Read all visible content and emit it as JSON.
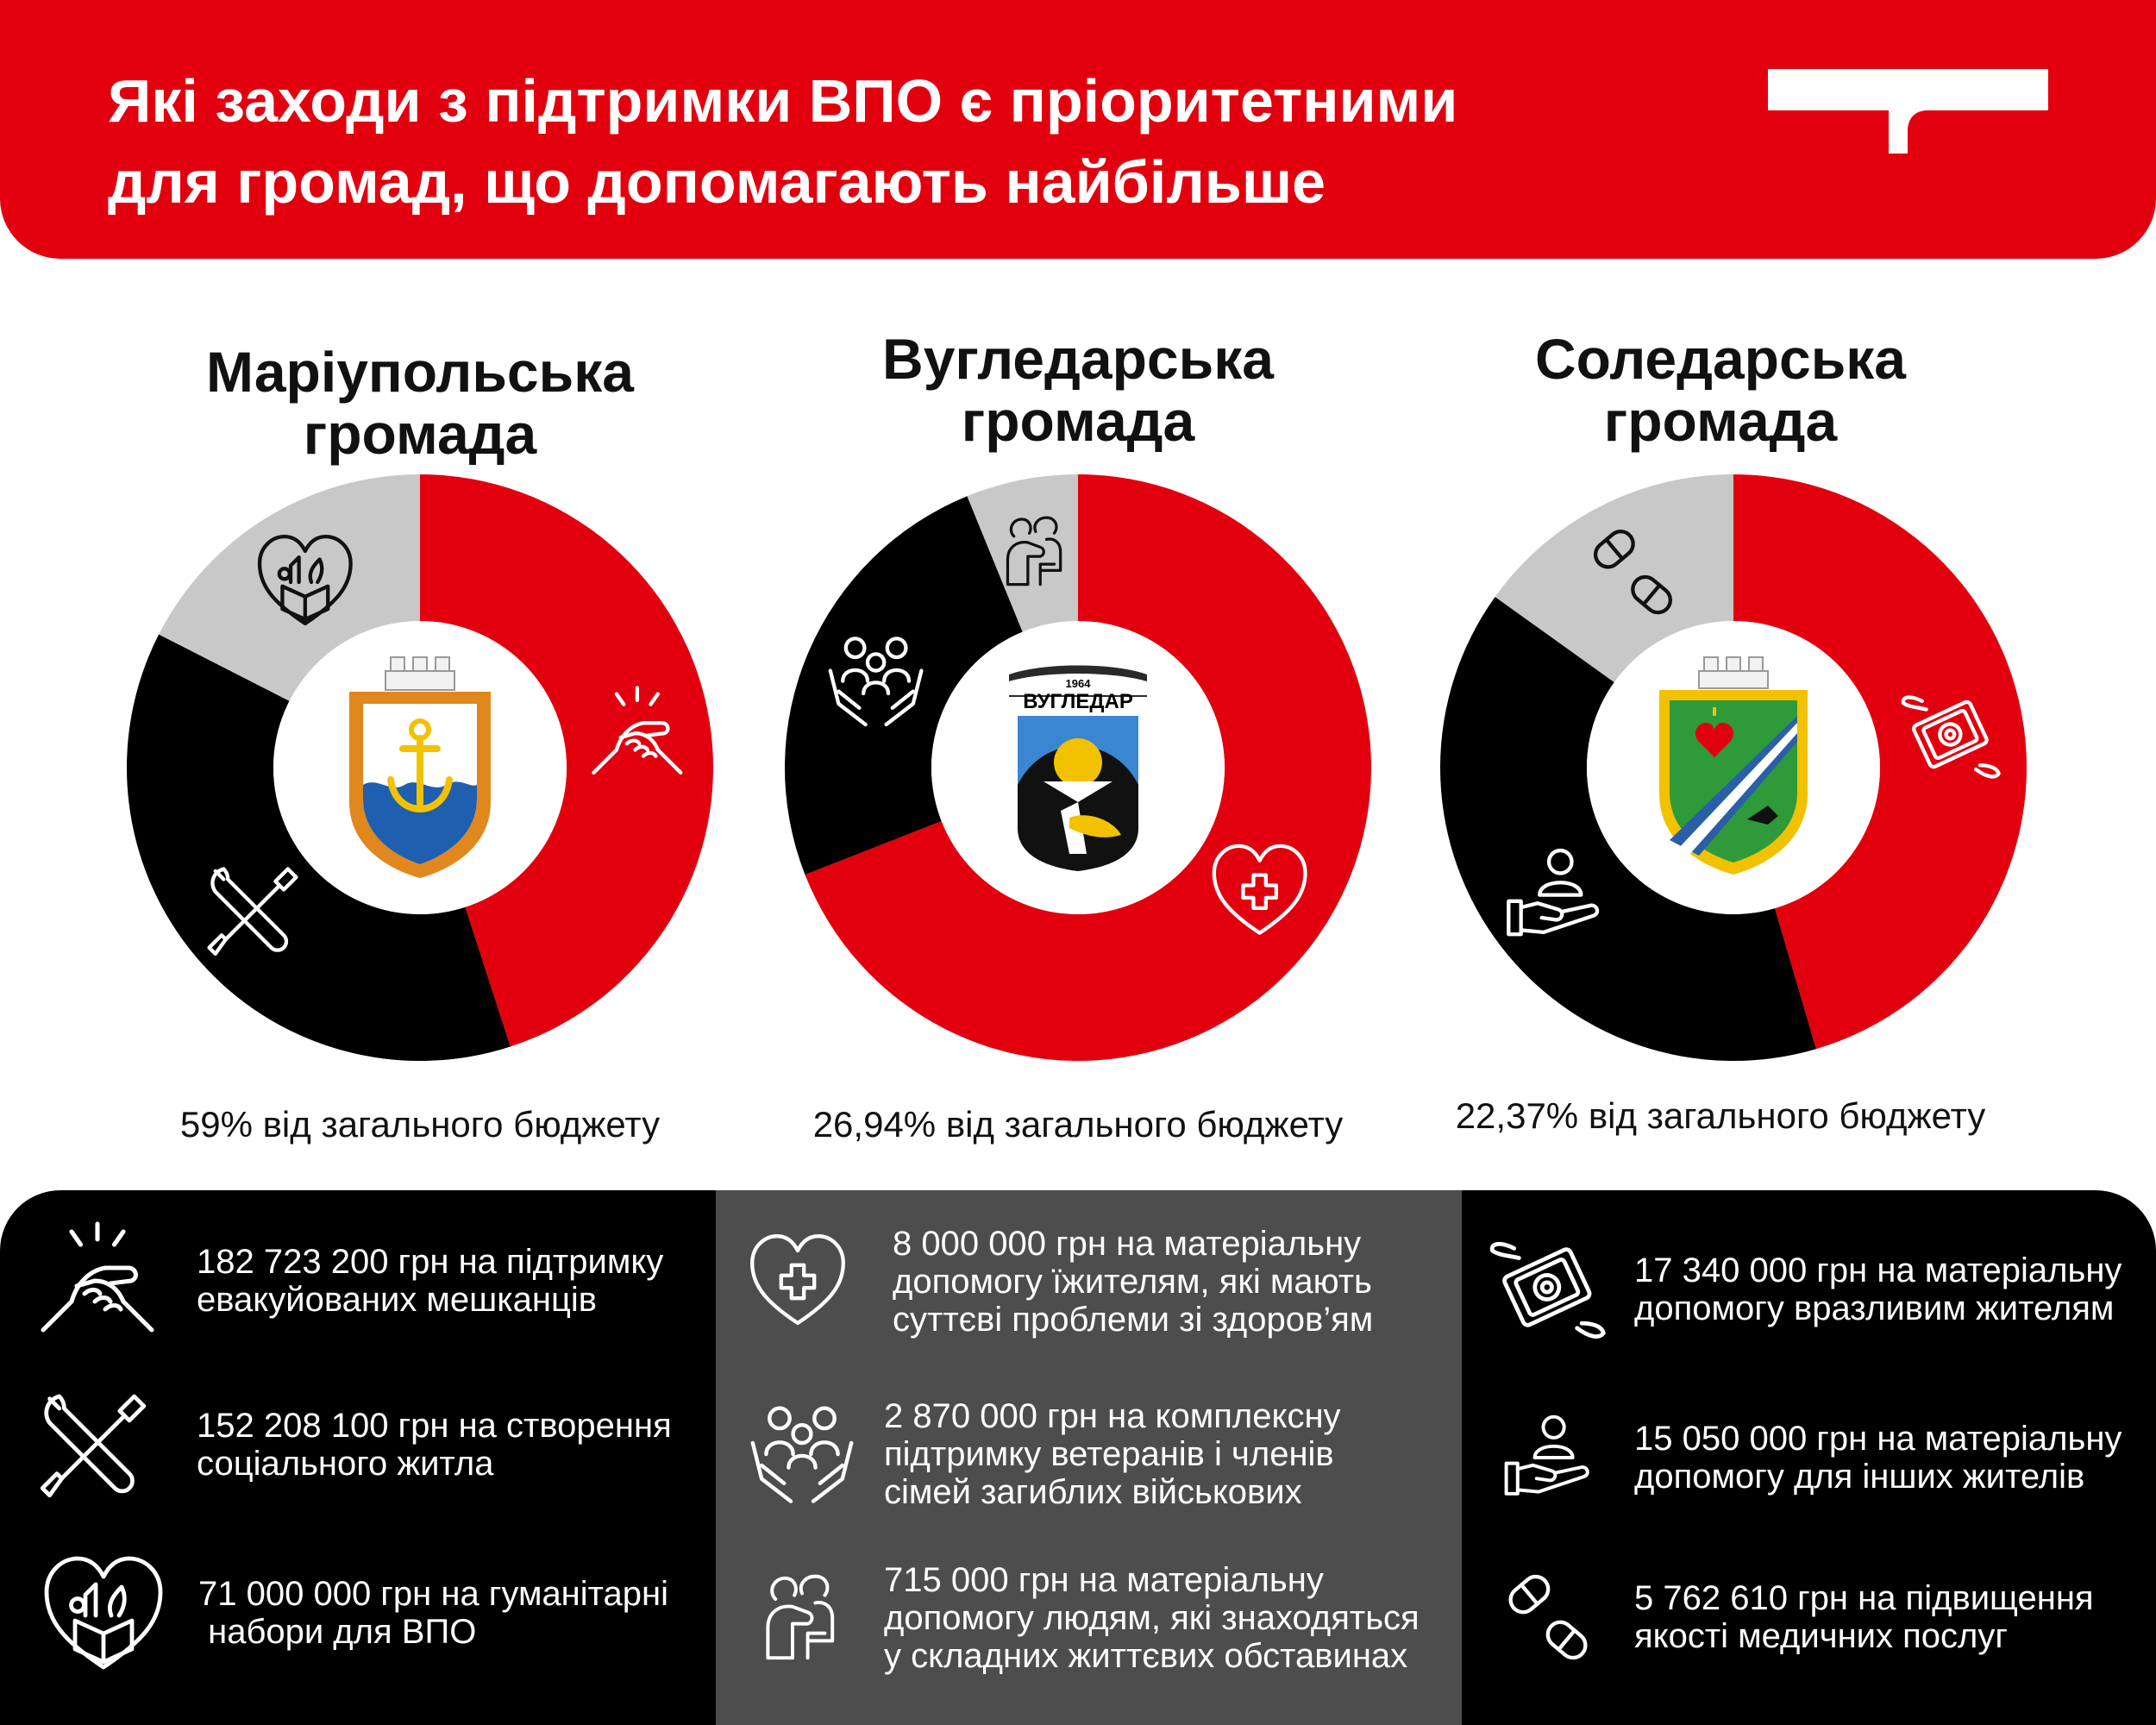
{
  "header": {
    "title_lines": [
      "Які заходи з підтримки ВПО є пріоритетними",
      "для громад, що допомагають найбільше"
    ]
  },
  "colors": {
    "red": "#e2000f",
    "black": "#000000",
    "gray": "#c8c8c8",
    "dark_gray": "#4d4d4d",
    "white": "#ffffff"
  },
  "chart_data": [
    {
      "type": "pie",
      "title_lines": [
        "Маріупольська",
        "громада"
      ],
      "caption": "59% від загального бюджету",
      "center_emblem": "mariupol-coat-of-arms",
      "slices": [
        {
          "label": "182 723 200 грн на підтримку евакуйованих мешканців",
          "value": 182723200,
          "color": "#e2000f",
          "icon": "handshake-icon"
        },
        {
          "label": "152 208 100 грн на створення соціального житла",
          "value": 152208100,
          "color": "#000000",
          "icon": "tools-icon"
        },
        {
          "label": "71 000 000 грн на гуманітарні набори для ВПО",
          "value": 71000000,
          "color": "#c8c8c8",
          "icon": "heart-box-icon"
        }
      ]
    },
    {
      "type": "pie",
      "title_lines": [
        "Вугледарська",
        "громада"
      ],
      "caption": "26,94% від загального бюджету",
      "center_emblem": "vuhledar-coat-of-arms",
      "emblem_text": {
        "year": "1964",
        "name": "ВУГЛЕДАР"
      },
      "slices": [
        {
          "label": "8 000 000 грн на матеріальну допомогу жителям, які мають суттєві проблеми зі здоров’ям",
          "value": 8000000,
          "color": "#e2000f",
          "icon": "heart-medical-icon"
        },
        {
          "label": "2 870 000 грн на комплексну підтримку ветеранів і членів сімей загиблих військових",
          "value": 2870000,
          "color": "#000000",
          "icon": "family-hands-icon"
        },
        {
          "label": "715 000 грн на матеріальну допомогу людям, які знаходяться у складних життєвих обставинах",
          "value": 715000,
          "color": "#c8c8c8",
          "icon": "hug-icon"
        }
      ]
    },
    {
      "type": "pie",
      "title_lines": [
        "Соледарська",
        "громада"
      ],
      "caption": "22,37% від загального бюджету",
      "center_emblem": "soledar-coat-of-arms",
      "slices": [
        {
          "label": "17 340 000 грн на матеріальну допомогу вразливим жителям",
          "value": 17340000,
          "color": "#e2000f",
          "icon": "flying-money-icon"
        },
        {
          "label": "15 050 000 грн на матеріальну допомогу для інших жителів",
          "value": 15050000,
          "color": "#000000",
          "icon": "hand-person-icon"
        },
        {
          "label": "5 762 610 грн на підвищення якості медичних послуг",
          "value": 5762610,
          "color": "#c8c8c8",
          "icon": "pills-icon"
        }
      ]
    }
  ],
  "panels": [
    {
      "items": [
        {
          "icon": "handshake-icon",
          "lines": [
            "182 723 200 грн на підтримку",
            "евакуйованих мешканців"
          ]
        },
        {
          "icon": "tools-icon",
          "lines": [
            "152 208 100 грн на створення",
            "соціального житла"
          ]
        },
        {
          "icon": "heart-box-icon",
          "lines": [
            "71 000 000 грн на гуманітарні",
            " набори для ВПО"
          ]
        }
      ]
    },
    {
      "items": [
        {
          "icon": "heart-medical-icon",
          "lines": [
            "8 000 000 грн на матеріальну",
            "допомогу їжителям, які мають",
            "суттєві проблеми зі здоров’ям"
          ]
        },
        {
          "icon": "family-hands-icon",
          "lines": [
            "2 870 000 грн на комплексну",
            "підтримку ветеранів і членів",
            "сімей загиблих військових"
          ]
        },
        {
          "icon": "hug-icon",
          "lines": [
            "715 000 грн на матеріальну",
            "допомогу людям, які знаходяться",
            "у складних життєвих обставинах"
          ]
        }
      ]
    },
    {
      "items": [
        {
          "icon": "flying-money-icon",
          "lines": [
            "17 340 000 грн на матеріальну",
            "допомогу вразливим жителям"
          ]
        },
        {
          "icon": "hand-person-icon",
          "lines": [
            "15 050 000 грн на матеріальну",
            "допомогу для інших жителів"
          ]
        },
        {
          "icon": "pills-icon",
          "lines": [
            "5 762 610 грн на підвищення",
            "якості медичних послуг"
          ]
        }
      ]
    }
  ]
}
